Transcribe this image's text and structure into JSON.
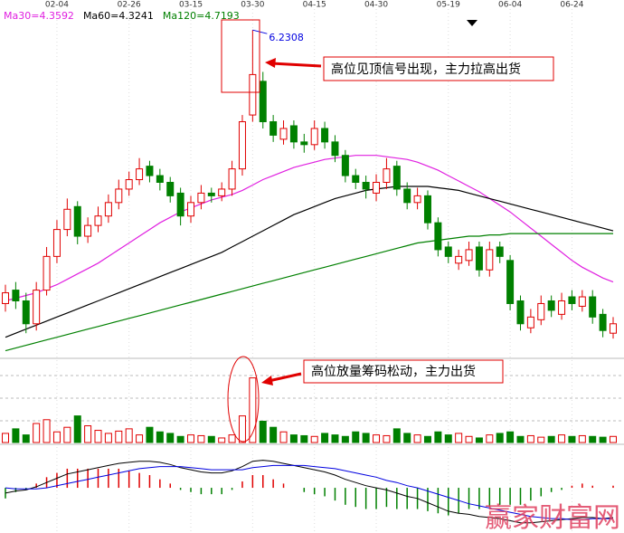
{
  "chart_data": {
    "type": "candlestick",
    "categories": [
      null,
      null,
      null,
      null,
      null,
      "02-04",
      null,
      null,
      null,
      null,
      null,
      null,
      "02-26",
      null,
      null,
      null,
      null,
      null,
      "03-15",
      null,
      null,
      null,
      null,
      null,
      "03-30",
      null,
      null,
      null,
      null,
      null,
      "04-15",
      null,
      null,
      null,
      null,
      null,
      "04-30",
      null,
      null,
      null,
      null,
      null,
      null,
      "05-19",
      null,
      null,
      null,
      null,
      null,
      "06-04",
      null,
      null,
      null,
      null,
      null,
      "06-24",
      null,
      null,
      null,
      null
    ],
    "open": [
      4.2,
      4.3,
      4.22,
      4.05,
      4.3,
      4.55,
      4.75,
      4.92,
      4.7,
      4.78,
      4.85,
      4.95,
      5.05,
      5.12,
      5.22,
      5.15,
      5.1,
      5.02,
      4.85,
      4.95,
      5.02,
      5.0,
      5.05,
      5.2,
      5.6,
      5.85,
      5.55,
      5.42,
      5.52,
      5.4,
      5.38,
      5.5,
      5.4,
      5.3,
      5.15,
      5.1,
      5.02,
      5.1,
      5.22,
      5.05,
      4.95,
      5.0,
      4.8,
      4.62,
      4.5,
      4.52,
      4.62,
      4.45,
      4.62,
      4.52,
      4.22,
      4.02,
      4.08,
      4.22,
      4.12,
      4.25,
      4.18,
      4.25,
      4.12,
      3.98
    ],
    "high": [
      4.34,
      4.36,
      4.28,
      4.36,
      4.62,
      4.82,
      4.98,
      4.96,
      4.84,
      4.92,
      5.01,
      5.12,
      5.18,
      5.28,
      5.26,
      5.2,
      5.14,
      5.06,
      5.0,
      5.08,
      5.06,
      5.1,
      5.26,
      5.6,
      6.2308,
      5.92,
      5.6,
      5.56,
      5.56,
      5.46,
      5.56,
      5.55,
      5.45,
      5.34,
      5.2,
      5.15,
      5.16,
      5.28,
      5.26,
      5.1,
      5.06,
      5.04,
      4.84,
      4.66,
      4.6,
      4.66,
      4.66,
      4.66,
      4.66,
      4.56,
      4.26,
      4.16,
      4.26,
      4.26,
      4.28,
      4.3,
      4.3,
      4.3,
      4.16,
      4.1
    ],
    "low": [
      4.14,
      4.16,
      3.98,
      4.0,
      4.26,
      4.5,
      4.7,
      4.64,
      4.65,
      4.73,
      4.8,
      4.9,
      5.0,
      5.08,
      5.1,
      5.04,
      4.95,
      4.78,
      4.8,
      4.9,
      4.95,
      4.96,
      5.0,
      5.15,
      5.55,
      5.5,
      5.4,
      5.38,
      5.35,
      5.32,
      5.34,
      5.35,
      5.25,
      5.1,
      5.05,
      4.98,
      4.96,
      5.05,
      5.0,
      4.9,
      4.9,
      4.75,
      4.55,
      4.5,
      4.45,
      4.48,
      4.4,
      4.4,
      4.5,
      4.15,
      4.0,
      3.98,
      4.04,
      4.1,
      4.08,
      4.15,
      4.14,
      4.05,
      3.95,
      3.94
    ],
    "close": [
      4.28,
      4.22,
      4.05,
      4.3,
      4.55,
      4.75,
      4.9,
      4.7,
      4.78,
      4.85,
      4.95,
      5.05,
      5.12,
      5.2,
      5.15,
      5.1,
      5.0,
      4.85,
      4.95,
      5.02,
      5.0,
      5.05,
      5.2,
      5.55,
      5.9,
      5.55,
      5.45,
      5.5,
      5.4,
      5.38,
      5.5,
      5.4,
      5.3,
      5.15,
      5.1,
      5.05,
      5.1,
      5.2,
      5.05,
      4.95,
      5.0,
      4.8,
      4.6,
      4.55,
      4.55,
      4.6,
      4.45,
      4.6,
      4.55,
      4.2,
      4.05,
      4.1,
      4.2,
      4.15,
      4.22,
      4.2,
      4.25,
      4.1,
      4.0,
      4.05
    ],
    "up_color": "#e00000",
    "down_color": "#008000",
    "ylim": [
      3.8,
      6.4
    ],
    "series": [
      {
        "name": "Ma30=4.3592",
        "color": "#e020e0",
        "values": [
          4.22,
          4.24,
          4.26,
          4.28,
          4.31,
          4.34,
          4.38,
          4.42,
          4.46,
          4.5,
          4.55,
          4.6,
          4.65,
          4.7,
          4.75,
          4.8,
          4.84,
          4.88,
          4.91,
          4.94,
          4.97,
          4.99,
          5.01,
          5.04,
          5.08,
          5.12,
          5.15,
          5.18,
          5.21,
          5.23,
          5.25,
          5.27,
          5.28,
          5.29,
          5.3,
          5.3,
          5.3,
          5.29,
          5.28,
          5.27,
          5.25,
          5.22,
          5.19,
          5.15,
          5.11,
          5.07,
          5.03,
          4.98,
          4.93,
          4.88,
          4.82,
          4.76,
          4.7,
          4.64,
          4.58,
          4.52,
          4.47,
          4.43,
          4.39,
          4.36
        ]
      },
      {
        "name": "Ma60=4.3241",
        "color": "#000000",
        "values": [
          3.95,
          3.98,
          4.01,
          4.04,
          4.07,
          4.1,
          4.13,
          4.16,
          4.19,
          4.22,
          4.25,
          4.28,
          4.31,
          4.34,
          4.37,
          4.4,
          4.43,
          4.46,
          4.49,
          4.52,
          4.55,
          4.58,
          4.62,
          4.66,
          4.7,
          4.74,
          4.78,
          4.82,
          4.86,
          4.89,
          4.92,
          4.95,
          4.98,
          5.0,
          5.02,
          5.04,
          5.05,
          5.06,
          5.07,
          5.07,
          5.07,
          5.07,
          5.06,
          5.05,
          5.04,
          5.02,
          5.0,
          4.98,
          4.96,
          4.94,
          4.92,
          4.9,
          4.88,
          4.86,
          4.84,
          4.82,
          4.8,
          4.78,
          4.76,
          4.74
        ]
      },
      {
        "name": "Ma120=4.7193",
        "color": "#008000",
        "values": [
          3.85,
          3.87,
          3.89,
          3.91,
          3.93,
          3.95,
          3.97,
          3.99,
          4.01,
          4.03,
          4.05,
          4.07,
          4.09,
          4.11,
          4.13,
          4.15,
          4.17,
          4.19,
          4.21,
          4.23,
          4.25,
          4.27,
          4.29,
          4.31,
          4.33,
          4.35,
          4.37,
          4.39,
          4.41,
          4.43,
          4.45,
          4.47,
          4.49,
          4.51,
          4.53,
          4.55,
          4.57,
          4.59,
          4.61,
          4.63,
          4.65,
          4.66,
          4.67,
          4.68,
          4.69,
          4.7,
          4.7,
          4.71,
          4.71,
          4.72,
          4.72,
          4.72,
          4.72,
          4.72,
          4.72,
          4.72,
          4.72,
          4.72,
          4.72,
          4.72
        ]
      }
    ],
    "volume": {
      "ylim": [
        0,
        100
      ],
      "values": [
        12,
        18,
        10,
        25,
        30,
        14,
        20,
        35,
        22,
        16,
        12,
        15,
        18,
        10,
        20,
        14,
        12,
        8,
        10,
        9,
        8,
        6,
        10,
        35,
        85,
        28,
        20,
        14,
        10,
        9,
        8,
        12,
        10,
        8,
        14,
        12,
        10,
        9,
        18,
        12,
        10,
        8,
        14,
        10,
        12,
        8,
        6,
        10,
        12,
        14,
        8,
        9,
        7,
        8,
        10,
        8,
        9,
        8,
        7,
        8
      ]
    },
    "macd": {
      "ylim": [
        -0.4,
        0.35
      ],
      "dif": {
        "color": "#000000",
        "values": [
          -0.05,
          -0.03,
          -0.02,
          0.01,
          0.05,
          0.09,
          0.13,
          0.15,
          0.17,
          0.19,
          0.21,
          0.23,
          0.24,
          0.25,
          0.25,
          0.24,
          0.22,
          0.19,
          0.17,
          0.15,
          0.14,
          0.14,
          0.16,
          0.2,
          0.25,
          0.26,
          0.25,
          0.23,
          0.21,
          0.19,
          0.17,
          0.15,
          0.12,
          0.08,
          0.05,
          0.02,
          0.0,
          -0.02,
          -0.05,
          -0.08,
          -0.1,
          -0.14,
          -0.18,
          -0.22,
          -0.24,
          -0.25,
          -0.27,
          -0.28,
          -0.29,
          -0.31,
          -0.33,
          -0.33,
          -0.32,
          -0.31,
          -0.3,
          -0.29,
          -0.28,
          -0.28,
          -0.29,
          -0.28
        ]
      },
      "dea": {
        "color": "#0000e0",
        "values": [
          0.0,
          -0.01,
          -0.01,
          -0.01,
          0.0,
          0.02,
          0.04,
          0.06,
          0.08,
          0.1,
          0.12,
          0.14,
          0.16,
          0.18,
          0.19,
          0.2,
          0.2,
          0.2,
          0.19,
          0.18,
          0.17,
          0.17,
          0.17,
          0.17,
          0.19,
          0.2,
          0.21,
          0.21,
          0.21,
          0.21,
          0.2,
          0.19,
          0.18,
          0.16,
          0.14,
          0.12,
          0.1,
          0.07,
          0.05,
          0.02,
          0.0,
          -0.03,
          -0.06,
          -0.09,
          -0.12,
          -0.15,
          -0.17,
          -0.19,
          -0.21,
          -0.23,
          -0.25,
          -0.27,
          -0.28,
          -0.29,
          -0.29,
          -0.3,
          -0.3,
          -0.29,
          -0.29,
          -0.29
        ]
      },
      "hist": {
        "values": [
          -0.1,
          -0.04,
          -0.02,
          0.04,
          0.1,
          0.14,
          0.18,
          0.18,
          0.18,
          0.18,
          0.18,
          0.18,
          0.16,
          0.14,
          0.12,
          0.08,
          0.04,
          -0.02,
          -0.04,
          -0.06,
          -0.06,
          -0.06,
          -0.02,
          0.06,
          0.12,
          0.12,
          0.08,
          0.04,
          0.0,
          -0.04,
          -0.06,
          -0.08,
          -0.12,
          -0.16,
          -0.18,
          -0.2,
          -0.2,
          -0.18,
          -0.2,
          -0.2,
          -0.2,
          -0.22,
          -0.24,
          -0.26,
          -0.24,
          -0.2,
          -0.2,
          -0.18,
          -0.16,
          -0.16,
          -0.16,
          -0.12,
          -0.08,
          -0.04,
          -0.02,
          0.02,
          0.04,
          0.02,
          0.0,
          0.02
        ]
      }
    },
    "annotations": [
      "高位见顶信号出现，主力拉高出货",
      "高位放量筹码松动，主力出货"
    ],
    "watermark": "赢家财富网"
  }
}
